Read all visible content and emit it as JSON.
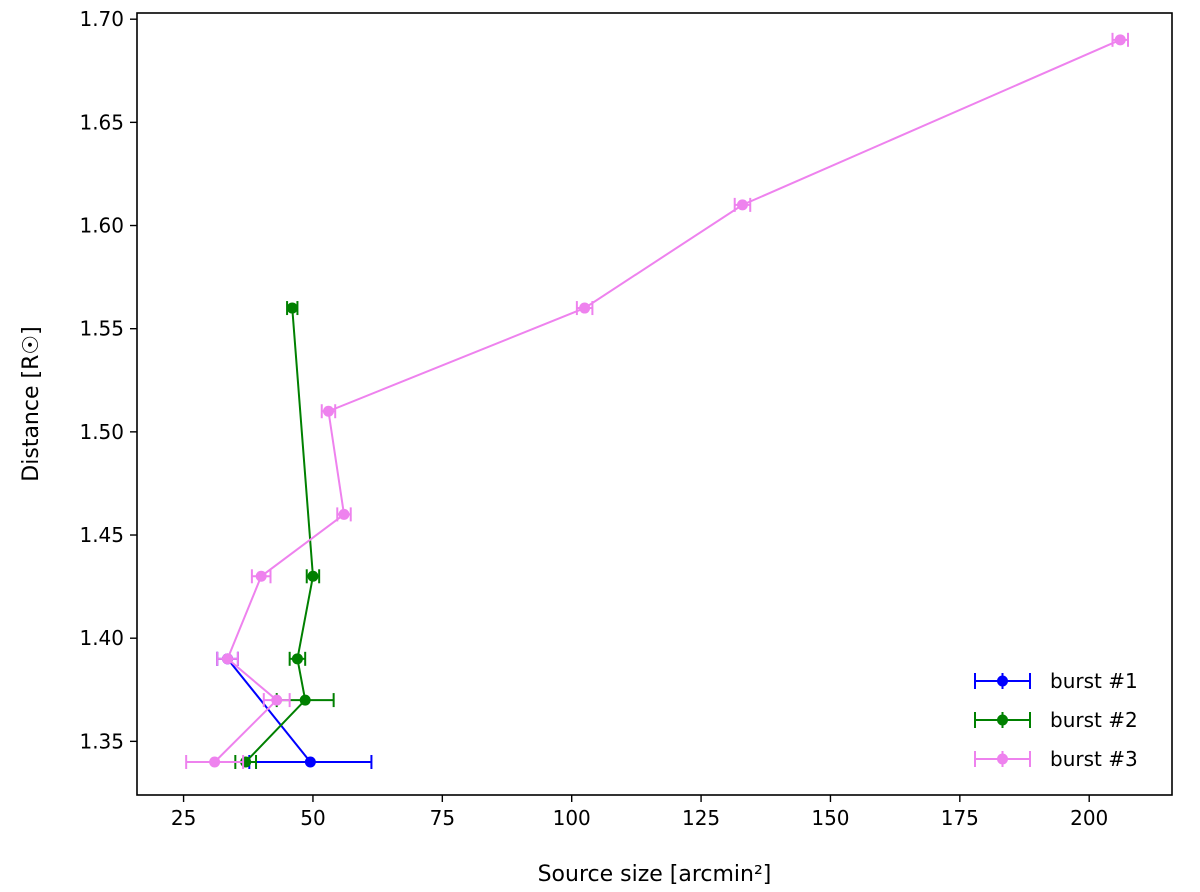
{
  "chart_data": {
    "type": "line",
    "title": "",
    "xlabel": "Source size [arcmin²]",
    "ylabel": "Distance [R☉]",
    "xlim": [
      16,
      216
    ],
    "ylim": [
      1.324,
      1.703
    ],
    "xticks": [
      25,
      50,
      75,
      100,
      125,
      150,
      175,
      200
    ],
    "yticks": [
      1.35,
      1.4,
      1.45,
      1.5,
      1.55,
      1.6,
      1.65,
      1.7
    ],
    "xtick_labels": [
      "25",
      "50",
      "75",
      "100",
      "125",
      "150",
      "175",
      "200"
    ],
    "ytick_labels": [
      "1.35",
      "1.40",
      "1.45",
      "1.50",
      "1.55",
      "1.60",
      "1.65",
      "1.70"
    ],
    "grid": false,
    "legend_position": "lower-right",
    "error_bars": "horizontal",
    "series": [
      {
        "name": "burst #1",
        "color": "#0000ff",
        "points": [
          {
            "x": 33.5,
            "y": 1.39,
            "xerr": 2.0
          },
          {
            "x": 49.5,
            "y": 1.34,
            "xerr": 11.8
          }
        ]
      },
      {
        "name": "burst #2",
        "color": "#008000",
        "points": [
          {
            "x": 46.0,
            "y": 1.56,
            "xerr": 1.0
          },
          {
            "x": 50.0,
            "y": 1.43,
            "xerr": 1.2
          },
          {
            "x": 47.0,
            "y": 1.39,
            "xerr": 1.5
          },
          {
            "x": 48.5,
            "y": 1.37,
            "xerr": 5.5
          },
          {
            "x": 37.0,
            "y": 1.34,
            "xerr": 2.0
          }
        ]
      },
      {
        "name": "burst #3",
        "color": "#ee82ee",
        "points": [
          {
            "x": 206.0,
            "y": 1.69,
            "xerr": 1.5
          },
          {
            "x": 133.0,
            "y": 1.61,
            "xerr": 1.5
          },
          {
            "x": 102.5,
            "y": 1.56,
            "xerr": 1.5
          },
          {
            "x": 53.0,
            "y": 1.51,
            "xerr": 1.3
          },
          {
            "x": 56.0,
            "y": 1.46,
            "xerr": 1.3
          },
          {
            "x": 40.0,
            "y": 1.43,
            "xerr": 1.8
          },
          {
            "x": 33.5,
            "y": 1.39,
            "xerr": 2.0
          },
          {
            "x": 43.0,
            "y": 1.37,
            "xerr": 2.5
          },
          {
            "x": 31.0,
            "y": 1.34,
            "xerr": 5.5
          }
        ]
      }
    ]
  }
}
